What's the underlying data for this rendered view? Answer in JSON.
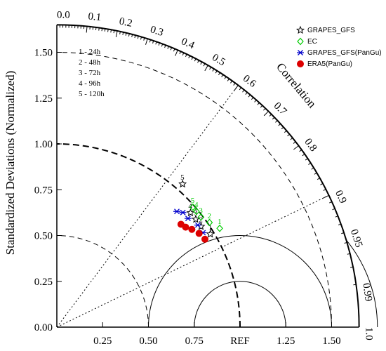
{
  "chart_data": {
    "type": "taylor",
    "ylabel": "Standardized Deviations (Normalized)",
    "correlation_label": "Correlation",
    "ref_label": "REF",
    "std_max": 1.65,
    "std_ticks_left": [
      "0.00",
      "0.25",
      "0.50",
      "0.75",
      "1.00",
      "1.25",
      "1.50"
    ],
    "std_ticks_bottom": [
      "0.25",
      "0.50",
      "0.75",
      "REF",
      "1.25",
      "1.50"
    ],
    "correlation_ticks": [
      "0.0",
      "0.1",
      "0.2",
      "0.3",
      "0.4",
      "0.5",
      "0.6",
      "0.7",
      "0.8",
      "0.9",
      "0.95",
      "0.99",
      "1.0"
    ],
    "rms_contours": [
      0.25,
      0.5,
      0.75
    ],
    "std_arcs": [
      0.5,
      1.0,
      1.5
    ],
    "lead_time_key": [
      "1 - 24h",
      "2 - 48h",
      "3 - 72h",
      "4 - 96h",
      "5 - 120h"
    ],
    "series": [
      {
        "name": "GRAPES_GFS",
        "marker": "star",
        "color": "#000000",
        "points": [
          {
            "label": "1",
            "std": 0.98,
            "corr": 0.855
          },
          {
            "label": "2",
            "std": 0.96,
            "corr": 0.82
          },
          {
            "label": "3",
            "std": 0.96,
            "corr": 0.79
          },
          {
            "label": "4",
            "std": 0.96,
            "corr": 0.76
          },
          {
            "label": "5",
            "std": 1.04,
            "corr": 0.66
          }
        ]
      },
      {
        "name": "EC",
        "marker": "diamond",
        "color": "#00cc00",
        "points": [
          {
            "label": "1",
            "std": 1.04,
            "corr": 0.855
          },
          {
            "label": "2",
            "std": 1.01,
            "corr": 0.825
          },
          {
            "label": "3",
            "std": 0.99,
            "corr": 0.795
          },
          {
            "label": "4",
            "std": 0.99,
            "corr": 0.77
          },
          {
            "label": "5",
            "std": 0.99,
            "corr": 0.75
          }
        ]
      },
      {
        "name": "GRAPES_GFS(PanGu)",
        "marker": "asterisk",
        "color": "#0000cc",
        "points": [
          {
            "label": "1",
            "std": 0.95,
            "corr": 0.84
          },
          {
            "label": "2",
            "std": 0.95,
            "corr": 0.81
          },
          {
            "label": "3",
            "std": 0.93,
            "corr": 0.77
          },
          {
            "label": "4",
            "std": 0.93,
            "corr": 0.74
          },
          {
            "label": "5",
            "std": 0.91,
            "corr": 0.72
          }
        ]
      },
      {
        "name": "ERA5(PanGu)",
        "marker": "circle",
        "color": "#dd0000",
        "points": [
          {
            "label": "1",
            "std": 0.94,
            "corr": 0.86
          },
          {
            "label": "2",
            "std": 0.93,
            "corr": 0.835
          },
          {
            "label": "3",
            "std": 0.91,
            "corr": 0.81
          },
          {
            "label": "4",
            "std": 0.89,
            "corr": 0.79
          },
          {
            "label": "5",
            "std": 0.88,
            "corr": 0.77
          }
        ]
      }
    ],
    "legend_position": "top-right"
  }
}
